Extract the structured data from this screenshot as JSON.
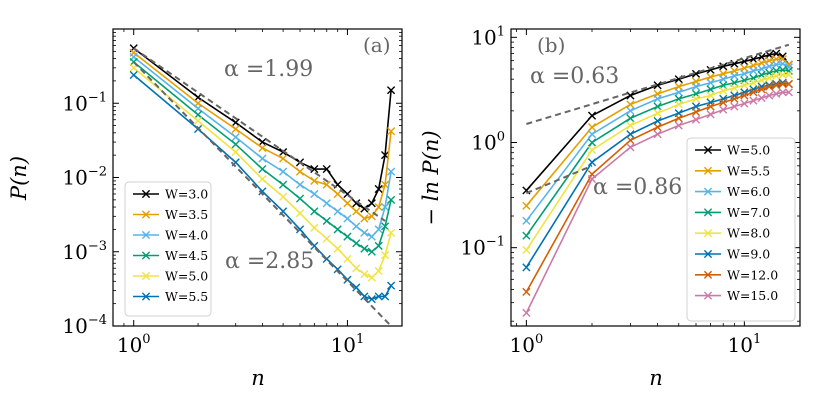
{
  "chart_data": [
    {
      "type": "line",
      "panel": "(a)",
      "xlabel": "n",
      "ylabel": "P(n)",
      "xscale": "log",
      "yscale": "log",
      "xlim": [
        0.8,
        18
      ],
      "ylim": [
        0.0001,
        1
      ],
      "xticks": [
        {
          "value": 1,
          "mantissa": "10",
          "exp": "0"
        },
        {
          "value": 10,
          "mantissa": "10",
          "exp": "1"
        }
      ],
      "yticks": [
        {
          "value": 0.0001,
          "mantissa": "10",
          "exp": "−4"
        },
        {
          "value": 0.001,
          "mantissa": "10",
          "exp": "−3"
        },
        {
          "value": 0.01,
          "mantissa": "10",
          "exp": "−2"
        },
        {
          "value": 0.1,
          "mantissa": "10",
          "exp": "−1"
        }
      ],
      "x": [
        1,
        2,
        3,
        4,
        5,
        6,
        7,
        8,
        9,
        10,
        11,
        12,
        13,
        14,
        15,
        16
      ],
      "series": [
        {
          "name": "W=3.0",
          "color": "#000000",
          "values": [
            0.55,
            0.12,
            0.055,
            0.03,
            0.022,
            0.016,
            0.013,
            0.013,
            0.008,
            0.006,
            0.0045,
            0.0038,
            0.0045,
            0.007,
            0.02,
            0.15
          ]
        },
        {
          "name": "W=3.5",
          "color": "#e69f00",
          "values": [
            0.48,
            0.1,
            0.045,
            0.025,
            0.018,
            0.012,
            0.009,
            0.008,
            0.006,
            0.0045,
            0.0035,
            0.0028,
            0.003,
            0.004,
            0.008,
            0.042
          ]
        },
        {
          "name": "W=4.0",
          "color": "#56b4e9",
          "values": [
            0.42,
            0.085,
            0.035,
            0.018,
            0.012,
            0.008,
            0.006,
            0.0045,
            0.0035,
            0.0028,
            0.0022,
            0.0018,
            0.0016,
            0.002,
            0.004,
            0.012
          ]
        },
        {
          "name": "W=4.5",
          "color": "#009e73",
          "values": [
            0.36,
            0.07,
            0.028,
            0.013,
            0.008,
            0.0052,
            0.0035,
            0.0026,
            0.002,
            0.0016,
            0.0013,
            0.0011,
            0.001,
            0.0012,
            0.0022,
            0.005
          ]
        },
        {
          "name": "W=5.0",
          "color": "#f0e442",
          "values": [
            0.3,
            0.058,
            0.022,
            0.0095,
            0.0055,
            0.0033,
            0.0021,
            0.0015,
            0.0011,
            0.0008,
            0.0006,
            0.0005,
            0.00045,
            0.00055,
            0.0009,
            0.0018
          ]
        },
        {
          "name": "W=5.5",
          "color": "#0072b2",
          "values": [
            0.24,
            0.045,
            0.016,
            0.0065,
            0.0035,
            0.002,
            0.0012,
            0.0008,
            0.00058,
            0.00042,
            0.00033,
            0.00025,
            0.00023,
            0.00025,
            0.00025,
            0.00035
          ]
        }
      ],
      "guides": [
        {
          "label": "α =1.99",
          "slope": -1.99,
          "x0": 1,
          "y0": 0.55,
          "x1": 15,
          "y1": 0.0026
        },
        {
          "label": "α =2.85",
          "slope": -2.85,
          "x0": 1,
          "y0": 0.36,
          "x1": 16,
          "y1": 0.0001
        }
      ],
      "legend_position": "bottom-left"
    },
    {
      "type": "line",
      "panel": "(b)",
      "xlabel": "n",
      "ylabel": "− ln P(n)",
      "xscale": "log",
      "yscale": "log",
      "xlim": [
        0.85,
        18
      ],
      "ylim": [
        0.018,
        12
      ],
      "xticks": [
        {
          "value": 1,
          "mantissa": "10",
          "exp": "0"
        },
        {
          "value": 10,
          "mantissa": "10",
          "exp": "1"
        }
      ],
      "yticks": [
        {
          "value": 0.1,
          "mantissa": "10",
          "exp": "−1"
        },
        {
          "value": 1,
          "mantissa": "10",
          "exp": "0"
        },
        {
          "value": 10,
          "mantissa": "10",
          "exp": "1"
        }
      ],
      "x": [
        1,
        2,
        3,
        4,
        5,
        6,
        7,
        8,
        9,
        10,
        11,
        12,
        13,
        14,
        15,
        16
      ],
      "series": [
        {
          "name": "W=5.0",
          "color": "#000000",
          "values": [
            0.35,
            1.8,
            2.8,
            3.5,
            4.0,
            4.5,
            4.9,
            5.3,
            5.6,
            5.9,
            6.2,
            6.5,
            6.8,
            7.0,
            6.6,
            5.5
          ]
        },
        {
          "name": "W=5.5",
          "color": "#e69f00",
          "values": [
            0.25,
            1.4,
            2.3,
            2.9,
            3.4,
            3.8,
            4.2,
            4.5,
            4.8,
            5.1,
            5.4,
            5.7,
            6.0,
            6.2,
            6.2,
            5.5
          ]
        },
        {
          "name": "W=6.0",
          "color": "#56b4e9",
          "values": [
            0.18,
            1.2,
            2.0,
            2.6,
            3.0,
            3.4,
            3.7,
            4.0,
            4.3,
            4.5,
            4.8,
            5.0,
            5.3,
            5.5,
            5.6,
            5.2
          ]
        },
        {
          "name": "W=7.0",
          "color": "#009e73",
          "values": [
            0.13,
            1.0,
            1.7,
            2.2,
            2.6,
            2.9,
            3.2,
            3.5,
            3.7,
            3.9,
            4.1,
            4.4,
            4.6,
            4.8,
            4.9,
            4.8
          ]
        },
        {
          "name": "W=8.0",
          "color": "#f0e442",
          "values": [
            0.095,
            0.85,
            1.45,
            1.9,
            2.3,
            2.6,
            2.8,
            3.1,
            3.3,
            3.5,
            3.7,
            3.9,
            4.1,
            4.3,
            4.4,
            4.4
          ]
        },
        {
          "name": "W=9.0",
          "color": "#0072b2",
          "values": [
            0.065,
            0.65,
            1.2,
            1.6,
            1.9,
            2.2,
            2.4,
            2.6,
            2.8,
            3.0,
            3.2,
            3.4,
            3.5,
            3.6,
            3.7,
            3.6
          ]
        },
        {
          "name": "W=12.0",
          "color": "#d55e00",
          "values": [
            0.038,
            0.5,
            1.05,
            1.4,
            1.7,
            1.95,
            2.2,
            2.4,
            2.6,
            2.8,
            3.0,
            3.2,
            3.4,
            3.5,
            3.6,
            3.6
          ]
        },
        {
          "name": "W=15.0",
          "color": "#cc79a7",
          "values": [
            0.024,
            0.45,
            0.9,
            1.2,
            1.45,
            1.65,
            1.85,
            2.05,
            2.2,
            2.35,
            2.5,
            2.65,
            2.8,
            2.9,
            3.0,
            3.0
          ]
        }
      ],
      "guides": [
        {
          "label": "α =0.63",
          "slope": 0.63,
          "x0": 1,
          "y0": 1.5,
          "x1": 16,
          "y1": 8.5
        },
        {
          "label": "α =0.86",
          "slope": 0.86,
          "x0": 1,
          "y0": 0.33,
          "x1": 2,
          "y1": 0.6
        }
      ],
      "legend_position": "right"
    }
  ]
}
